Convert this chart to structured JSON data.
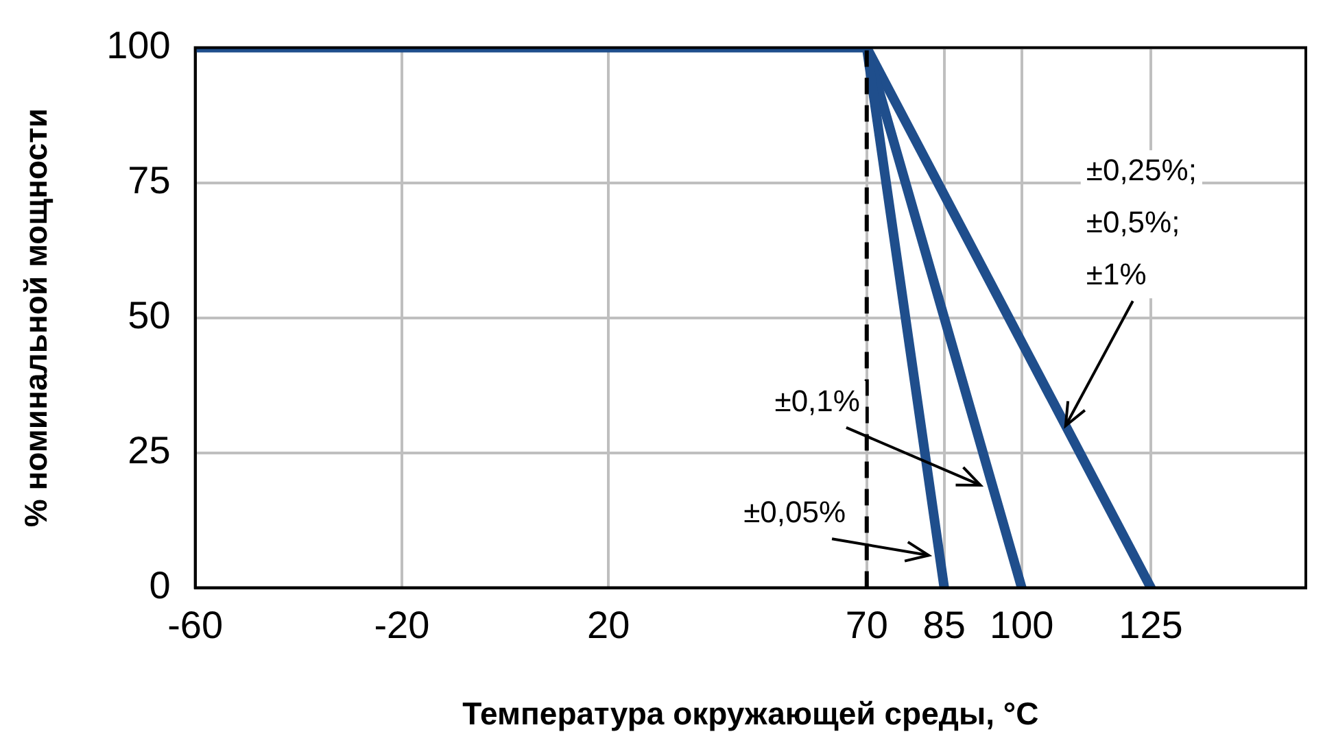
{
  "chart_data": {
    "type": "line",
    "xlabel": "Температура окружающей среды, °C",
    "ylabel": "% номинальной мощности",
    "series": [
      {
        "color": "#1f4e8c",
        "x": [
          -60,
          70,
          85
        ],
        "values": [
          100,
          100,
          0
        ]
      },
      {
        "color": "#1f4e8c",
        "x": [
          70,
          100
        ],
        "values": [
          100,
          0
        ]
      },
      {
        "color": "#1f4e8c",
        "x": [
          70,
          125
        ],
        "values": [
          100,
          0
        ]
      }
    ],
    "xlim": [
      -60,
      155
    ],
    "xticks": [
      -60,
      -20,
      20,
      70,
      85,
      100,
      125
    ],
    "ylim": [
      0,
      100
    ],
    "yticks": [
      0,
      25,
      50,
      75,
      100
    ],
    "grid": true,
    "legend": false,
    "marker": "none",
    "line_style": "solid",
    "ref_lines": [
      {
        "axis": "x",
        "value": 70,
        "color": "#000000",
        "line_style": "dashed"
      }
    ],
    "annotations": [
      {
        "text": "±0,05%",
        "x": 82,
        "y": 6
      },
      {
        "text": "±0,1%",
        "x": 92,
        "y": 19
      },
      {
        "text": "±0,25%;\n±0,5%;\n±1%",
        "x": 108.5,
        "y": 30
      }
    ]
  }
}
